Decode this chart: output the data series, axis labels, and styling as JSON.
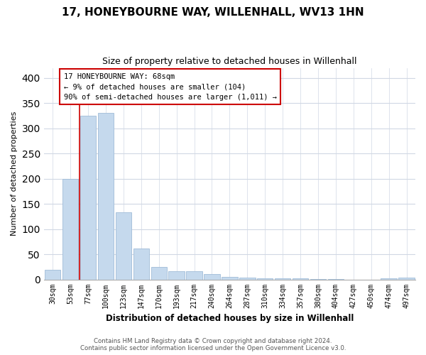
{
  "title": "17, HONEYBOURNE WAY, WILLENHALL, WV13 1HN",
  "subtitle": "Size of property relative to detached houses in Willenhall",
  "xlabel": "Distribution of detached houses by size in Willenhall",
  "ylabel": "Number of detached properties",
  "bar_labels": [
    "30sqm",
    "53sqm",
    "77sqm",
    "100sqm",
    "123sqm",
    "147sqm",
    "170sqm",
    "193sqm",
    "217sqm",
    "240sqm",
    "264sqm",
    "287sqm",
    "310sqm",
    "334sqm",
    "357sqm",
    "380sqm",
    "404sqm",
    "427sqm",
    "450sqm",
    "474sqm",
    "497sqm"
  ],
  "bar_values": [
    19,
    200,
    325,
    330,
    133,
    62,
    25,
    16,
    16,
    10,
    5,
    3,
    2,
    2,
    2,
    1,
    1,
    0,
    0,
    2,
    4
  ],
  "bar_color": "#c5d9ed",
  "bar_edge_color": "#a0bcd8",
  "marker_line_color": "#cc0000",
  "ylim": [
    0,
    420
  ],
  "yticks": [
    0,
    50,
    100,
    150,
    200,
    250,
    300,
    350,
    400
  ],
  "annotation_line1": "17 HONEYBOURNE WAY: 68sqm",
  "annotation_line2": "← 9% of detached houses are smaller (104)",
  "annotation_line3": "90% of semi-detached houses are larger (1,011) →",
  "footer_line1": "Contains HM Land Registry data © Crown copyright and database right 2024.",
  "footer_line2": "Contains public sector information licensed under the Open Government Licence v3.0.",
  "background_color": "#ffffff",
  "grid_color": "#d0d8e4",
  "title_fontsize": 11,
  "subtitle_fontsize": 9
}
